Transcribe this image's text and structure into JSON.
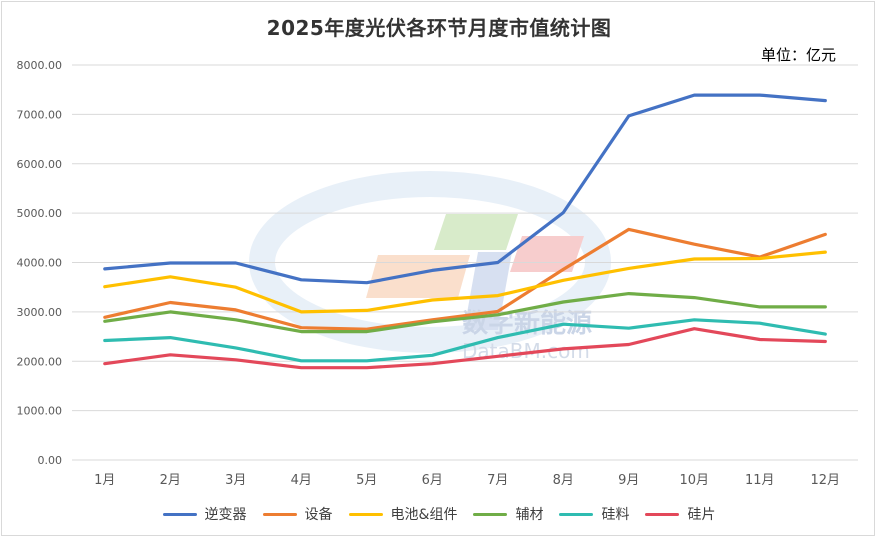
{
  "title": "2025年度光伏各环节月度市值统计图",
  "unit_label": "单位：亿元",
  "watermark": {
    "cn": "数字新能源",
    "en": "DataBM.com"
  },
  "colors": {
    "grid": "#d9d9d9",
    "axis": "#d9d9d9",
    "tick": "#595959"
  },
  "chart_data": {
    "type": "line",
    "title": "2025年度光伏各环节月度市值统计图",
    "xlabel": "",
    "ylabel": "",
    "ylim": [
      0,
      8000
    ],
    "ytick_step": 1000,
    "ytick_labels": [
      "0.00",
      "1000.00",
      "2000.00",
      "3000.00",
      "4000.00",
      "5000.00",
      "6000.00",
      "7000.00",
      "8000.00"
    ],
    "categories": [
      "1月",
      "2月",
      "3月",
      "4月",
      "5月",
      "6月",
      "7月",
      "8月",
      "9月",
      "10月",
      "11月",
      "12月"
    ],
    "grid": true,
    "legend": "bottom",
    "series": [
      {
        "name": "逆变器",
        "color": "#4472c4",
        "values": [
          3870,
          3990,
          3990,
          3650,
          3590,
          3840,
          4000,
          5010,
          6970,
          7390,
          7390,
          7280
        ]
      },
      {
        "name": "设备",
        "color": "#ed7d31",
        "values": [
          2890,
          3190,
          3040,
          2680,
          2650,
          2840,
          3010,
          3860,
          4670,
          4370,
          4110,
          4570
        ]
      },
      {
        "name": "电池&组件",
        "color": "#ffc000",
        "values": [
          3510,
          3710,
          3500,
          3000,
          3030,
          3240,
          3330,
          3640,
          3880,
          4070,
          4080,
          4210
        ]
      },
      {
        "name": "辅材",
        "color": "#70ad47",
        "values": [
          2810,
          3000,
          2840,
          2600,
          2600,
          2800,
          2940,
          3200,
          3370,
          3290,
          3100,
          3100
        ]
      },
      {
        "name": "硅料",
        "color": "#2fbcb1",
        "values": [
          2420,
          2480,
          2270,
          2010,
          2010,
          2120,
          2480,
          2750,
          2670,
          2840,
          2770,
          2550
        ]
      },
      {
        "name": "硅片",
        "color": "#e3485a",
        "values": [
          1950,
          2130,
          2030,
          1870,
          1870,
          1950,
          2100,
          2250,
          2340,
          2660,
          2440,
          2400
        ]
      }
    ]
  }
}
